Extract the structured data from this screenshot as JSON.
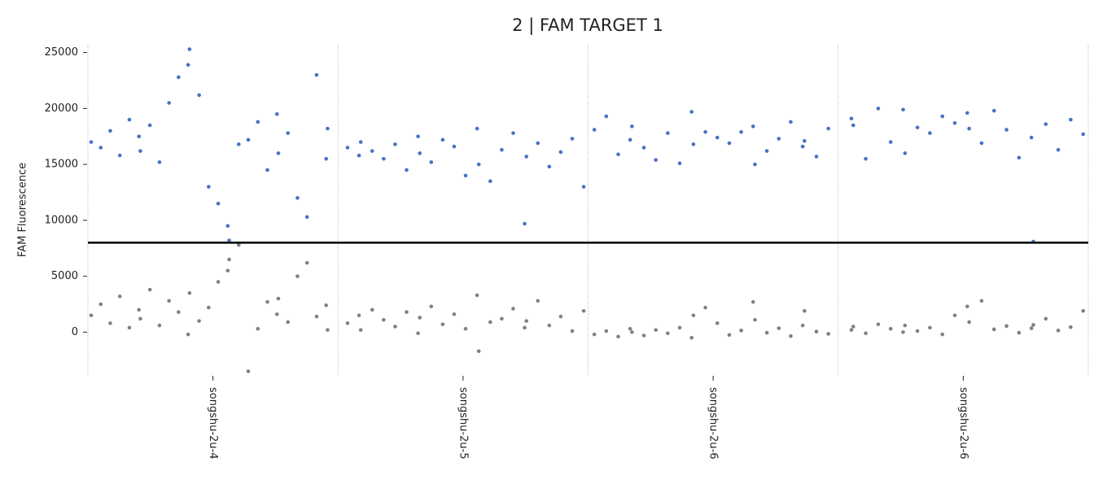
{
  "chart_data": {
    "type": "scatter",
    "title": "2 | FAM TARGET 1",
    "y_label": "FAM Fluorescence",
    "categories": [
      "songshu-2u-4",
      "songshu-2u-5",
      "songshu-2u-6",
      "songshu-2u-6"
    ],
    "ylim": [
      -3900,
      25700
    ],
    "yticks": [
      0,
      5000,
      10000,
      15000,
      20000,
      25000
    ],
    "threshold": 8000,
    "positive_color": "#4472c4",
    "negative_color": "#808080",
    "positive": [
      [
        17000,
        16500,
        18000,
        15800,
        19000,
        17500,
        16200,
        18500,
        15200,
        20500,
        22800,
        23900,
        25300,
        21200,
        13000,
        11500,
        9500,
        8200,
        16800,
        17200,
        18800,
        14500,
        19500,
        16000,
        17800,
        12000,
        10300,
        23000,
        15500,
        18200
      ],
      [
        16500,
        15800,
        17000,
        16200,
        15500,
        16800,
        14500,
        17500,
        16000,
        15200,
        17200,
        16600,
        14000,
        18200,
        15000,
        13500,
        16300,
        17800,
        9700,
        15700,
        16900,
        14800,
        16100,
        17300,
        13000
      ],
      [
        18100,
        19300,
        15900,
        17200,
        18400,
        16500,
        15400,
        17800,
        15100,
        19700,
        16800,
        17900,
        17400,
        16900,
        17900,
        18400,
        15000,
        16200,
        17300,
        18800,
        16600,
        17100,
        15700,
        18200
      ],
      [
        19100,
        18500,
        15500,
        20000,
        17000,
        19900,
        16000,
        18300,
        17800,
        19300,
        18700,
        19600,
        18200,
        16900,
        19800,
        18100,
        15600,
        17400,
        8100,
        18600,
        16300,
        19000,
        17700
      ]
    ],
    "negative": [
      [
        1500,
        2500,
        800,
        3200,
        400,
        2000,
        1200,
        3800,
        600,
        2800,
        1800,
        -200,
        3500,
        1000,
        2200,
        4500,
        5500,
        6500,
        7800,
        -3500,
        300,
        2700,
        1600,
        3000,
        900,
        5000,
        6200,
        1400,
        2400,
        200
      ],
      [
        800,
        1500,
        200,
        2000,
        1100,
        500,
        1800,
        -100,
        1300,
        2300,
        700,
        1600,
        300,
        3300,
        -1700,
        900,
        1200,
        2100,
        400,
        1000,
        2800,
        600,
        1400,
        100,
        1900
      ],
      [
        -200,
        100,
        -400,
        300,
        0,
        -300,
        200,
        -100,
        400,
        -500,
        1500,
        2200,
        800,
        -250,
        150,
        2700,
        1100,
        -50,
        350,
        -350,
        600,
        1900,
        50,
        -150
      ],
      [
        200,
        500,
        -100,
        700,
        300,
        0,
        600,
        100,
        400,
        -200,
        1500,
        2300,
        900,
        2800,
        250,
        550,
        -50,
        350,
        650,
        1200,
        150,
        450,
        1900
      ]
    ]
  }
}
